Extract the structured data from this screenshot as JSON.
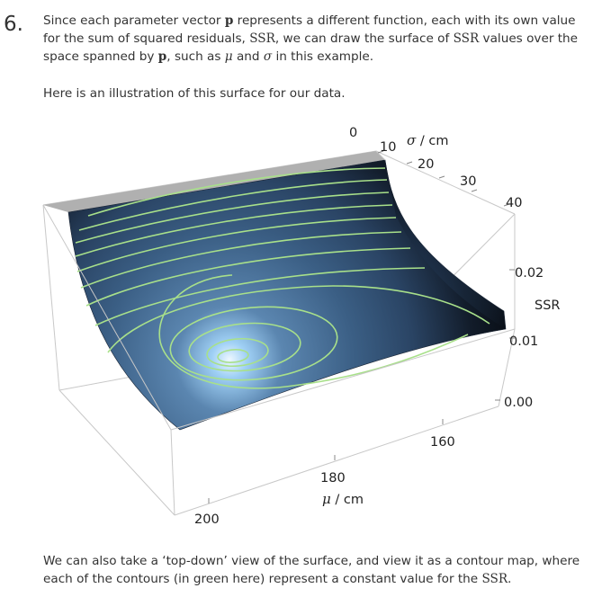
{
  "step": {
    "number": "6."
  },
  "paragraph1": {
    "t1": "Since each parameter vector ",
    "p_sym": "p",
    "t2": " represents a different function, each with its own value for the sum of squared residuals, ",
    "ssr": "SSR",
    "t3": ", we can draw the surface of ",
    "ssr2": "SSR",
    "t4": " values over the space spanned by ",
    "p_sym2": "p",
    "t5": ", such as ",
    "mu": "μ",
    "t6": " and ",
    "sigma": "σ",
    "t7": " in this example."
  },
  "paragraph2": {
    "text": "Here is an illustration of this surface for our data."
  },
  "paragraph3": {
    "t1": "We can also take a ‘top-down’ view of the surface, and view it as a contour map, where each of the contours (in green here) represent a constant value for the ",
    "ssr": "SSR",
    "t2": "."
  },
  "figure": {
    "sigma_axis": {
      "label_sym": "σ",
      "label_unit": " / cm",
      "ticks": [
        "0",
        "10",
        "20",
        "30",
        "40"
      ]
    },
    "mu_axis": {
      "label_sym": "μ",
      "label_unit": " / cm",
      "ticks": [
        "160",
        "180",
        "200"
      ]
    },
    "ssr_axis": {
      "label": "SSR",
      "ticks": [
        "0.02",
        "0.01",
        "0.00"
      ]
    },
    "colors": {
      "contour": "#a8e08a",
      "surface_dark": "#0a0f18",
      "surface_mid": "#3f6890",
      "highlight": "#e8f6ff",
      "box": "#c8c8c8"
    }
  }
}
